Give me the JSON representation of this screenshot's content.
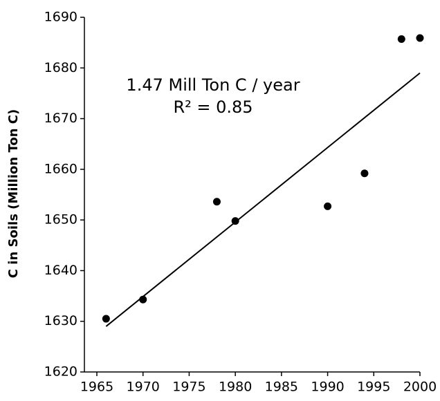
{
  "chart_data": {
    "type": "scatter",
    "y_label": "C in Soils (Million Ton C)",
    "annotations": [
      "1.47 Mill Ton C / year",
      "R² = 0.85"
    ],
    "x": [
      1966,
      1970,
      1978,
      1980,
      1990,
      1994,
      1998,
      2000
    ],
    "values": [
      1630.5,
      1634.3,
      1653.6,
      1649.8,
      1652.7,
      1659.2,
      1685.7,
      1685.9
    ],
    "color": "#000000",
    "trendline": {
      "x": [
        1966,
        2000
      ],
      "values": [
        1629,
        1679
      ]
    },
    "xlim": [
      1965,
      2000
    ],
    "xticks": [
      1965,
      1970,
      1975,
      1980,
      1985,
      1990,
      1995,
      2000
    ],
    "ylim": [
      1620,
      1690
    ],
    "yticks": [
      1620,
      1630,
      1640,
      1650,
      1660,
      1670,
      1680,
      1690
    ],
    "grid": false
  }
}
